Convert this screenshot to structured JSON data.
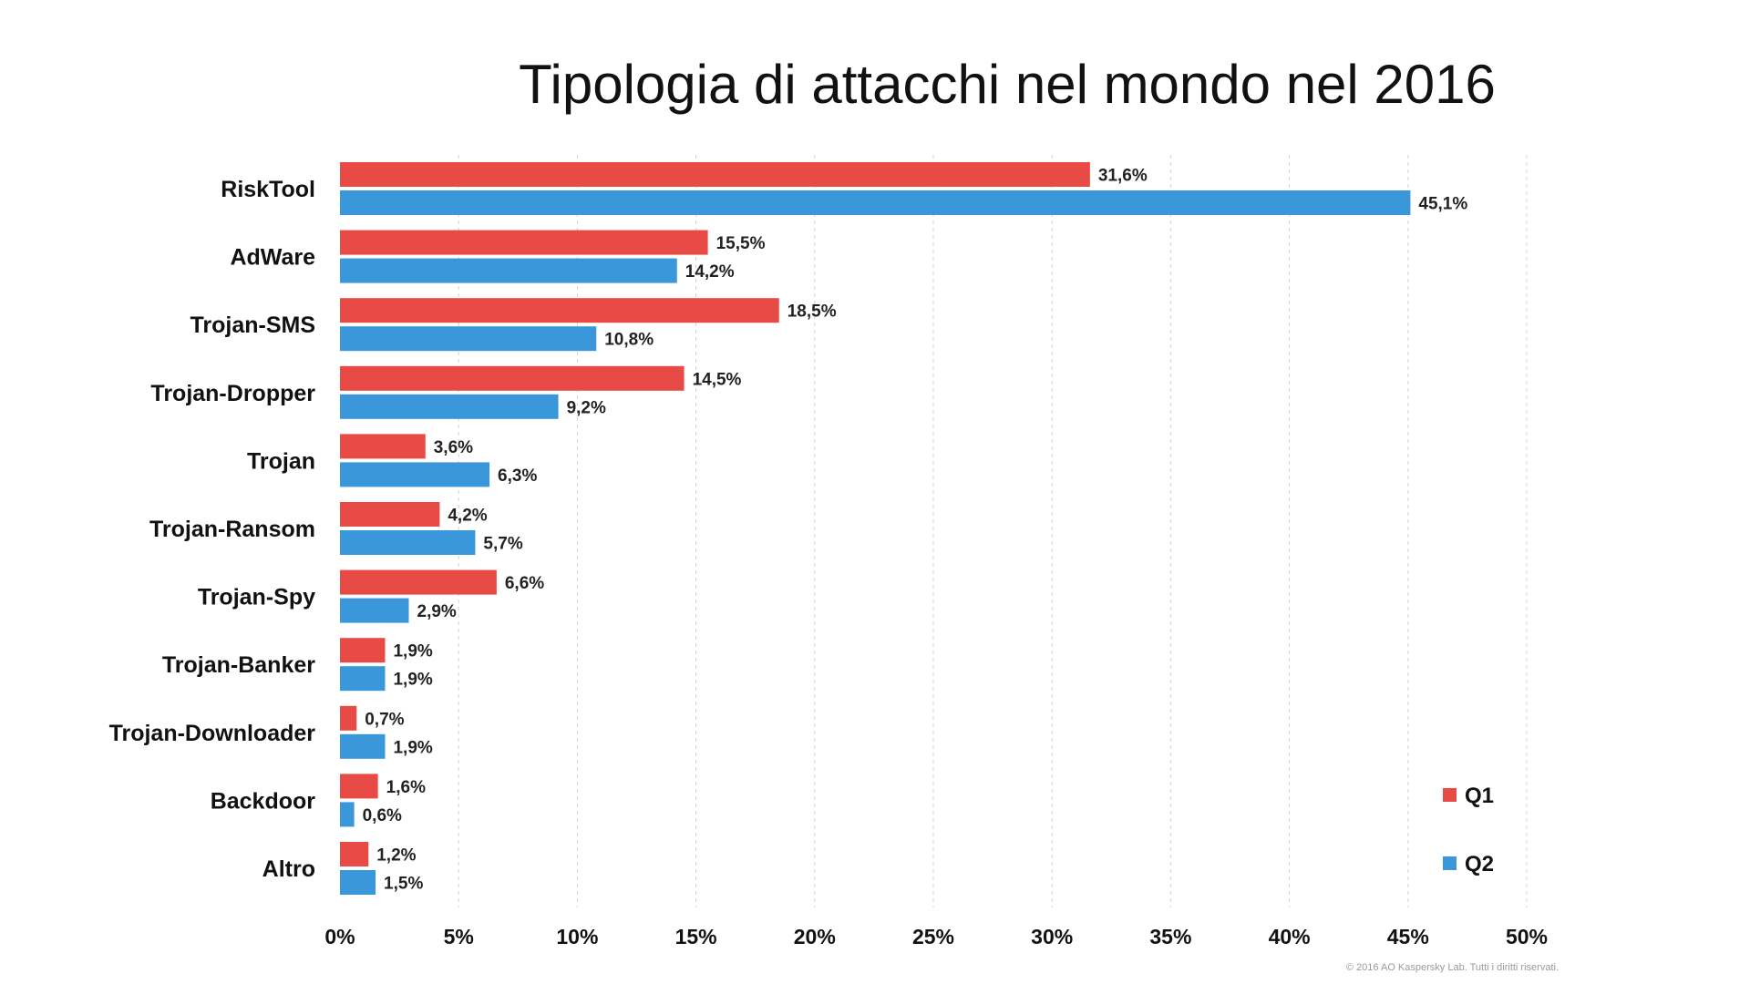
{
  "chart_data": {
    "type": "bar",
    "orientation": "horizontal",
    "title": "Tipologia di attacchi nel mondo nel 2016",
    "categories": [
      "RiskTool",
      "AdWare",
      "Trojan-SMS",
      "Trojan-Dropper",
      "Trojan",
      "Trojan-Ransom",
      "Trojan-Spy",
      "Trojan-Banker",
      "Trojan-Downloader",
      "Backdoor",
      "Altro"
    ],
    "series": [
      {
        "name": "Q1",
        "color": "#e84b45",
        "values": [
          31.6,
          15.5,
          18.5,
          14.5,
          3.6,
          4.2,
          6.6,
          1.9,
          0.7,
          1.6,
          1.2
        ],
        "labels": [
          "31,6%",
          "15,5%",
          "18,5%",
          "14,5%",
          "3,6%",
          "4,2%",
          "6,6%",
          "1,9%",
          "0,7%",
          "1,6%",
          "1,2%"
        ]
      },
      {
        "name": "Q2",
        "color": "#3a97d9",
        "values": [
          45.1,
          14.2,
          10.8,
          9.2,
          6.3,
          5.7,
          2.9,
          1.9,
          1.9,
          0.6,
          1.5
        ],
        "labels": [
          "45,1%",
          "14,2%",
          "10,8%",
          "9,2%",
          "6,3%",
          "5,7%",
          "2,9%",
          "1,9%",
          "1,9%",
          "0,6%",
          "1,5%"
        ]
      }
    ],
    "xlim": [
      0,
      50
    ],
    "xticks": [
      0,
      5,
      10,
      15,
      20,
      25,
      30,
      35,
      40,
      45,
      50
    ],
    "xtick_labels": [
      "0%",
      "5%",
      "10%",
      "15%",
      "20%",
      "25%",
      "30%",
      "35%",
      "40%",
      "45%",
      "50%"
    ],
    "grid": true,
    "legend_position": "bottom-right"
  },
  "footer": {
    "copyright": "© 2016 AO Kaspersky Lab. Tutti i diritti riservati."
  }
}
